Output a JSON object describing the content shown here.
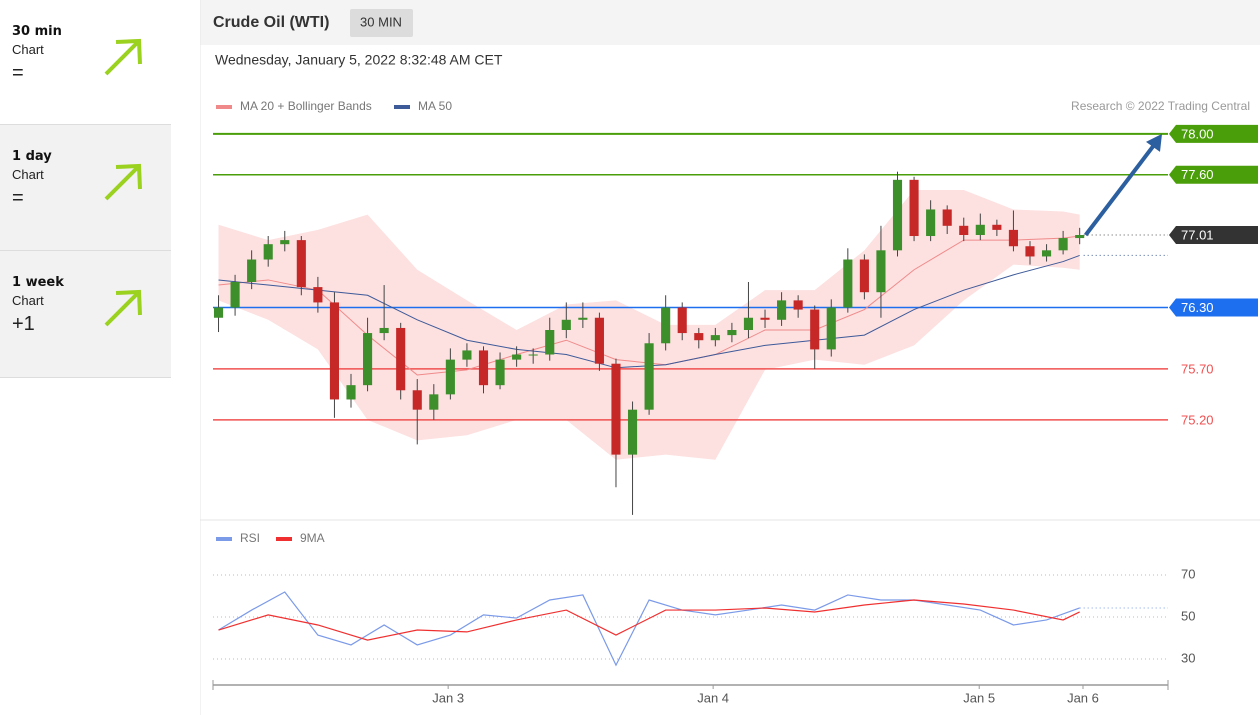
{
  "sidebar": [
    {
      "timeframe": "30 min",
      "label": "Chart",
      "signal": "="
    },
    {
      "timeframe": "1 day",
      "label": "Chart",
      "signal": "="
    },
    {
      "timeframe": "1 week",
      "label": "Chart",
      "signal": "+1"
    }
  ],
  "header": {
    "title": "Crude Oil (WTI)",
    "interval": "30 MIN",
    "timestamp": "Wednesday, January 5, 2022 8:32:48 AM CET"
  },
  "chart_data": [
    {
      "type": "candlestick",
      "copyright": "Research © 2022 Trading Central",
      "xlim": [
        0,
        173
      ],
      "ylim": [
        74.22,
        78.87
      ],
      "up_color": "#3c8f2a",
      "down_color": "#c62828",
      "wick_color": "#444",
      "arrow_color": "#2c5fa0",
      "candles": {
        "x": [
          1,
          4,
          7,
          10,
          13,
          16,
          19,
          22,
          25,
          28,
          31,
          34,
          37,
          40,
          43,
          46,
          49,
          52,
          55,
          58,
          61,
          64,
          67,
          70,
          73,
          76,
          79,
          82,
          85,
          88,
          91,
          94,
          97,
          100,
          103,
          106,
          109,
          112,
          115,
          118,
          121,
          124,
          127,
          130,
          133,
          136,
          139,
          142,
          145,
          148,
          151,
          154,
          157
        ],
        "open": [
          76.2,
          76.3,
          76.55,
          76.77,
          76.92,
          76.96,
          76.5,
          76.35,
          75.4,
          75.54,
          76.05,
          76.1,
          75.49,
          75.3,
          75.45,
          75.79,
          75.88,
          75.54,
          75.79,
          75.84,
          75.84,
          76.08,
          76.18,
          76.2,
          75.75,
          74.86,
          75.3,
          75.95,
          76.3,
          76.05,
          75.98,
          76.03,
          76.08,
          76.2,
          76.18,
          76.37,
          76.28,
          75.89,
          76.3,
          76.77,
          76.45,
          76.86,
          77.55,
          77.0,
          77.26,
          77.1,
          77.01,
          77.11,
          77.06,
          76.9,
          76.8,
          76.86,
          76.98
        ],
        "high": [
          76.42,
          76.62,
          76.86,
          77.0,
          77.05,
          77.0,
          76.6,
          76.45,
          75.65,
          76.2,
          76.52,
          76.15,
          75.6,
          75.55,
          75.9,
          75.95,
          75.92,
          75.86,
          75.92,
          75.9,
          76.2,
          76.35,
          76.35,
          76.25,
          75.8,
          75.38,
          76.05,
          76.42,
          76.35,
          76.1,
          76.1,
          76.15,
          76.55,
          76.28,
          76.45,
          76.42,
          76.32,
          76.38,
          76.88,
          76.82,
          77.1,
          77.63,
          77.58,
          77.35,
          77.3,
          77.18,
          77.22,
          77.16,
          77.25,
          76.95,
          76.92,
          77.05,
          77.08
        ],
        "low": [
          76.06,
          76.22,
          76.48,
          76.7,
          76.85,
          76.42,
          76.25,
          75.22,
          75.32,
          75.48,
          75.98,
          75.4,
          74.96,
          75.2,
          75.4,
          75.72,
          75.46,
          75.5,
          75.72,
          75.75,
          75.78,
          76.0,
          76.1,
          75.68,
          74.54,
          74.27,
          75.25,
          75.88,
          75.98,
          75.9,
          75.92,
          75.96,
          76.0,
          76.1,
          76.12,
          76.2,
          75.7,
          75.82,
          76.25,
          76.38,
          76.2,
          76.8,
          76.95,
          76.95,
          77.02,
          76.95,
          76.96,
          77.0,
          76.85,
          76.72,
          76.75,
          76.82,
          76.92
        ],
        "close": [
          76.3,
          76.55,
          76.77,
          76.92,
          76.96,
          76.5,
          76.35,
          75.4,
          75.54,
          76.05,
          76.1,
          75.49,
          75.3,
          75.45,
          75.79,
          75.88,
          75.54,
          75.79,
          75.84,
          75.84,
          76.08,
          76.18,
          76.2,
          75.75,
          74.86,
          75.3,
          75.95,
          76.3,
          76.05,
          75.98,
          76.03,
          76.08,
          76.2,
          76.18,
          76.37,
          76.28,
          75.89,
          76.3,
          76.77,
          76.45,
          76.86,
          77.55,
          77.0,
          77.26,
          77.1,
          77.01,
          77.11,
          77.06,
          76.9,
          76.8,
          76.86,
          76.98,
          77.01
        ]
      },
      "series": [
        {
          "name": "MA 20 + Bollinger Bands",
          "color": "#f08a8a",
          "band_color": "#fde0e0",
          "x": [
            1,
            10,
            19,
            28,
            37,
            46,
            55,
            64,
            73,
            82,
            91,
            100,
            109,
            118,
            127,
            136,
            145,
            154,
            157
          ],
          "values": [
            76.52,
            76.57,
            76.47,
            76.03,
            75.64,
            75.69,
            75.84,
            75.98,
            75.79,
            75.74,
            75.84,
            76.08,
            76.08,
            76.28,
            76.67,
            76.96,
            76.96,
            76.98,
            77.0
          ],
          "upper": [
            77.11,
            76.96,
            77.06,
            77.21,
            76.67,
            76.37,
            76.08,
            76.33,
            76.37,
            76.13,
            76.13,
            76.47,
            76.47,
            76.86,
            77.45,
            77.45,
            77.26,
            77.24,
            77.21
          ],
          "lower": [
            76.37,
            76.18,
            75.89,
            75.2,
            75.0,
            75.05,
            75.2,
            75.2,
            74.81,
            74.86,
            74.81,
            75.69,
            75.79,
            75.74,
            75.93,
            76.37,
            76.72,
            76.69,
            76.67
          ]
        },
        {
          "name": "MA 50",
          "color": "#3d5a99",
          "x": [
            1,
            10,
            19,
            28,
            37,
            46,
            55,
            64,
            73,
            82,
            91,
            100,
            109,
            118,
            127,
            136,
            145,
            154,
            157
          ],
          "values": [
            76.57,
            76.52,
            76.47,
            76.42,
            76.18,
            75.98,
            75.89,
            75.84,
            75.71,
            75.74,
            75.84,
            75.93,
            75.98,
            76.03,
            76.28,
            76.47,
            76.62,
            76.75,
            76.81
          ]
        }
      ],
      "levels": [
        {
          "value": 78,
          "label": "78.00",
          "color": "#4a9e0a",
          "style": "solid",
          "box": true
        },
        {
          "value": 77.6,
          "label": "77.60",
          "color": "#4a9e0a",
          "style": "solid",
          "box": true
        },
        {
          "value": 77.01,
          "label": "77.01",
          "color": "#333333",
          "style": "dotted",
          "box": true
        },
        {
          "value": 76.3,
          "label": "76.30",
          "color": "#1e6ff0",
          "style": "solid",
          "box": true
        },
        {
          "value": 75.7,
          "label": "75.70",
          "color": "#f05050",
          "style": "solid",
          "box": false
        },
        {
          "value": 75.2,
          "label": "75.20",
          "color": "#f05050",
          "style": "solid",
          "box": false
        }
      ]
    },
    {
      "type": "line",
      "xlim": [
        0,
        173
      ],
      "ylim": [
        18,
        94
      ],
      "yticks": [
        70,
        50,
        30
      ],
      "grid": true,
      "xticks": [
        {
          "value": 42.6,
          "label": "Jan 3"
        },
        {
          "value": 90.6,
          "label": "Jan 4"
        },
        {
          "value": 138.8,
          "label": "Jan 5"
        },
        {
          "value": 157.6,
          "label": "Jan 6"
        }
      ],
      "series": [
        {
          "name": "RSI",
          "color": "#7b9ae8",
          "x": [
            1,
            7,
            13,
            19,
            25,
            31,
            37,
            43,
            49,
            55,
            61,
            67,
            73,
            79,
            85,
            91,
            97,
            103,
            109,
            115,
            121,
            127,
            133,
            139,
            145,
            151,
            157
          ],
          "values": [
            43.8,
            53.3,
            61.9,
            41.4,
            36.7,
            46.2,
            36.7,
            41.4,
            51.0,
            49.5,
            58.1,
            60.5,
            27.1,
            58.1,
            53.3,
            51.0,
            53.3,
            55.7,
            53.3,
            60.5,
            58.1,
            58.1,
            55.7,
            53.3,
            46.2,
            48.6,
            54.3
          ]
        },
        {
          "name": "9MA",
          "color": "#f03030",
          "x": [
            1,
            10,
            19,
            28,
            37,
            46,
            55,
            64,
            73,
            82,
            91,
            100,
            109,
            118,
            127,
            136,
            145,
            154,
            157
          ],
          "values": [
            43.8,
            51.0,
            46.2,
            39.0,
            43.8,
            42.9,
            48.6,
            53.3,
            41.4,
            53.3,
            53.3,
            54.3,
            52.4,
            55.7,
            58.1,
            56.2,
            53.3,
            48.6,
            52.4
          ]
        }
      ]
    }
  ]
}
